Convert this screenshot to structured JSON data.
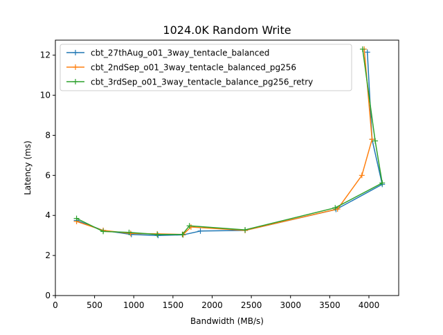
{
  "chart_data": {
    "type": "line",
    "title": "1024.0K  Random Write",
    "xlabel": "Bandwidth (MB/s)",
    "ylabel": "Latency (ms)",
    "xlim": [
      0,
      4380
    ],
    "ylim": [
      0,
      12.75
    ],
    "xticks": [
      0,
      500,
      1000,
      1500,
      2000,
      2500,
      3000,
      3500,
      4000
    ],
    "yticks": [
      0,
      2,
      4,
      6,
      8,
      10,
      12
    ],
    "grid": false,
    "legend_position": "top-left",
    "series": [
      {
        "name": "cbt_27thAug_o01_3way_tentacle_balanced",
        "color": "#1f77b4",
        "marker": "plus",
        "points": [
          [
            270,
            3.75
          ],
          [
            610,
            3.25
          ],
          [
            970,
            3.05
          ],
          [
            1310,
            3.0
          ],
          [
            1630,
            3.03
          ],
          [
            1850,
            3.22
          ],
          [
            2420,
            3.25
          ],
          [
            3580,
            4.3
          ],
          [
            4170,
            5.55
          ],
          [
            4040,
            7.8
          ],
          [
            3980,
            12.15
          ]
        ]
      },
      {
        "name": "cbt_2ndSep_o01_3way_tentacle_balanced_pg256",
        "color": "#ff7f0e",
        "marker": "plus",
        "points": [
          [
            270,
            3.7
          ],
          [
            610,
            3.25
          ],
          [
            960,
            3.1
          ],
          [
            1300,
            3.08
          ],
          [
            1630,
            3.05
          ],
          [
            1730,
            3.42
          ],
          [
            2420,
            3.25
          ],
          [
            3600,
            4.32
          ],
          [
            3910,
            6.0
          ],
          [
            4040,
            7.8
          ],
          [
            3940,
            12.3
          ]
        ]
      },
      {
        "name": "cbt_3rdSep_o01_3way_tentacle_balance_pg256_retry",
        "color": "#2ca02c",
        "marker": "plus",
        "points": [
          [
            270,
            3.85
          ],
          [
            610,
            3.2
          ],
          [
            940,
            3.15
          ],
          [
            1300,
            3.05
          ],
          [
            1620,
            3.05
          ],
          [
            1710,
            3.48
          ],
          [
            2420,
            3.28
          ],
          [
            3570,
            4.38
          ],
          [
            4170,
            5.62
          ],
          [
            4080,
            7.72
          ],
          [
            3920,
            12.3
          ]
        ]
      }
    ]
  }
}
